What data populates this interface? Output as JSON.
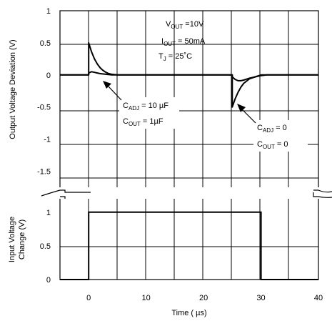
{
  "chart_data": {
    "type": "line",
    "x": {
      "label_prefix": "Time  ( ",
      "label_unit": "µs",
      "label_suffix": ")",
      "range": [
        -5,
        40
      ],
      "ticks": [
        0,
        10,
        20,
        30,
        40
      ],
      "tick_labels": [
        "0",
        "10",
        "20",
        "30",
        "40"
      ],
      "grid_values": [
        -5,
        0,
        5,
        10,
        15,
        20,
        25,
        30,
        35,
        40
      ]
    },
    "upper": {
      "ylabel": "Output Voltage Deviation  (V)",
      "ylim": [
        -1.75,
        1
      ],
      "ticks": [
        1,
        0.5,
        0,
        -0.5,
        -1,
        -1.5
      ],
      "tick_labels": [
        "1",
        "0.5",
        "0",
        "-0.5",
        "-1",
        "-1.5"
      ],
      "series": [
        {
          "label_id": "c10",
          "points": [
            [
              -5,
              0
            ],
            [
              0,
              0
            ],
            [
              0,
              0.5
            ],
            [
              0.5,
              0.36
            ],
            [
              1,
              0.25
            ],
            [
              1.5,
              0.17
            ],
            [
              2,
              0.11
            ],
            [
              2.5,
              0.07
            ],
            [
              3,
              0.04
            ],
            [
              3.5,
              0.02
            ],
            [
              4,
              0.01
            ],
            [
              5,
              0
            ],
            [
              25,
              0
            ],
            [
              25,
              -0.03
            ],
            [
              25.5,
              -0.07
            ],
            [
              26,
              -0.09
            ],
            [
              26.5,
              -0.09
            ],
            [
              27,
              -0.08
            ],
            [
              28,
              -0.05
            ],
            [
              29,
              -0.03
            ],
            [
              30,
              -0.01
            ],
            [
              31,
              0
            ],
            [
              40,
              0
            ]
          ]
        },
        {
          "label_id": "c0",
          "points": [
            [
              -5,
              0
            ],
            [
              0,
              0
            ],
            [
              0,
              0.03
            ],
            [
              0.5,
              0.05
            ],
            [
              1,
              0.04
            ],
            [
              1.5,
              0.03
            ],
            [
              2,
              0.02
            ],
            [
              3,
              0.01
            ],
            [
              4,
              0
            ],
            [
              25,
              0
            ],
            [
              25,
              -0.5
            ],
            [
              25.5,
              -0.37
            ],
            [
              26,
              -0.27
            ],
            [
              26.5,
              -0.19
            ],
            [
              27,
              -0.13
            ],
            [
              28,
              -0.06
            ],
            [
              29,
              -0.03
            ],
            [
              30,
              0
            ],
            [
              40,
              0
            ]
          ]
        }
      ],
      "conditions": {
        "vout": {
          "main": "V",
          "sub": "OUT",
          "rest": " =10V"
        },
        "iout": {
          "main": "I",
          "sub": "OUT",
          "rest": " = 50mA"
        },
        "tj": {
          "main": "T",
          "sub": "J",
          "rest": "  = 25˚C"
        }
      },
      "annotations": {
        "c10": {
          "line1": {
            "main": "C",
            "sub": "ADJ",
            "rest": " = 10 µF"
          },
          "line2": {
            "main": "C",
            "sub": "OUT",
            "rest": " = 1µF"
          }
        },
        "c0": {
          "line1": {
            "main": "C",
            "sub": "ADJ",
            "rest": "  = 0"
          },
          "line2": {
            "main": "C",
            "sub": "OUT",
            "rest": "  = 0"
          }
        }
      }
    },
    "lower": {
      "ylabel_line1": "Input Voltage",
      "ylabel_line2": "Change  (V)",
      "ylim": [
        0,
        1.2
      ],
      "ticks": [
        1,
        0.5,
        0
      ],
      "tick_labels": [
        "1",
        "0.5",
        "0"
      ],
      "series": [
        {
          "points": [
            [
              -5,
              0
            ],
            [
              0,
              0
            ],
            [
              0,
              1
            ],
            [
              30,
              1
            ],
            [
              30,
              0
            ],
            [
              40,
              0
            ]
          ]
        }
      ]
    }
  }
}
